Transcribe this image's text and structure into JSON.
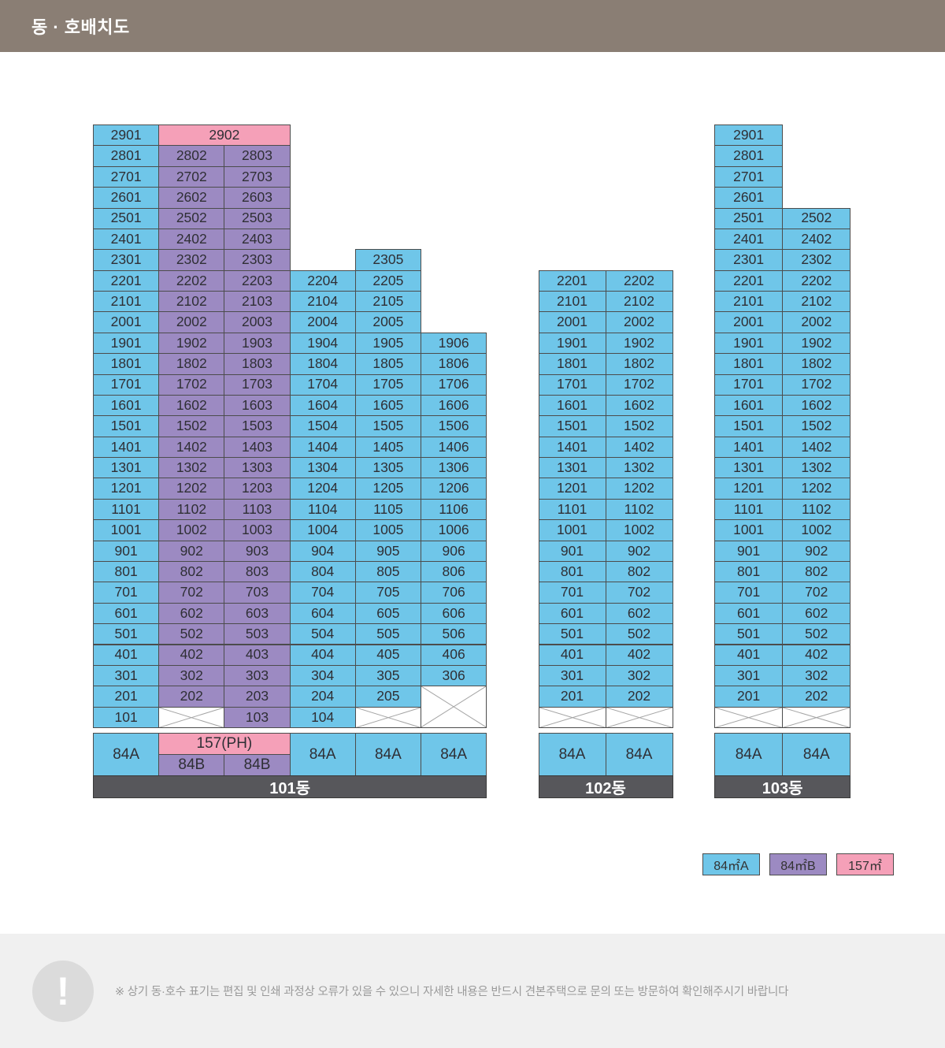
{
  "header": {
    "title": "동 · 호배치도"
  },
  "colors": {
    "unit_84a": "#6FC6E9",
    "unit_84b": "#9C8AC2",
    "unit_157": "#F5A0B8",
    "bar": "#57575B",
    "header_bg": "#8A7E74",
    "border": "#4C4C4C",
    "cell_text": "#2F2F35",
    "cross_line": "#A5A5A5",
    "note_bg": "#F0F0F0",
    "note_text": "#9A9A9A",
    "note_icon_bg": "#DBDBDB"
  },
  "legend": {
    "items": [
      {
        "label": "84㎡A",
        "color": "unit_84a"
      },
      {
        "label": "84㎡B",
        "color": "unit_84b"
      },
      {
        "label": "157㎡",
        "color": "unit_157"
      }
    ]
  },
  "note": {
    "icon_glyph": "!",
    "text": "※ 상기 동·호수 표기는 편집 및 인쇄 과정상 오류가 있을 수 있으니 자세한 내용은 반드시 견본주택으로 문의 또는 방문하여 확인해주시기 바랍니다"
  },
  "buildings": [
    {
      "name": "101동",
      "columns": [
        {
          "top_floor": 29,
          "color": "unit_84a",
          "cells": [
            "2901",
            "2801",
            "2701",
            "2601",
            "2501",
            "2401",
            "2301",
            "2201",
            "2101",
            "2001",
            "1901",
            "1801",
            "1701",
            "1601",
            "1501",
            "1401",
            "1301",
            "1201",
            "1101",
            "1001",
            "901",
            "801",
            "701",
            "601",
            "501",
            "401",
            "301",
            "201",
            "101"
          ]
        },
        {
          "top_floor": 29,
          "color": "unit_84b",
          "cells": [
            {
              "label": "2902",
              "color": "unit_157",
              "colspan": 2
            },
            "2802",
            "2702",
            "2602",
            "2502",
            "2402",
            "2302",
            "2202",
            "2102",
            "2002",
            "1902",
            "1802",
            "1702",
            "1602",
            "1502",
            "1402",
            "1302",
            "1202",
            "1102",
            "1002",
            "902",
            "802",
            "702",
            "602",
            "502",
            "402",
            "302",
            "202",
            {
              "cross": true
            }
          ]
        },
        {
          "top_floor": 28,
          "color": "unit_84b",
          "cells": [
            "2803",
            "2703",
            "2603",
            "2503",
            "2403",
            "2303",
            "2203",
            "2103",
            "2003",
            "1903",
            "1803",
            "1703",
            "1603",
            "1503",
            "1403",
            "1303",
            "1203",
            "1103",
            "1003",
            "903",
            "803",
            "703",
            "603",
            "503",
            "403",
            "303",
            "203",
            "103"
          ]
        },
        {
          "top_floor": 22,
          "color": "unit_84a",
          "cells": [
            "2204",
            "2104",
            "2004",
            "1904",
            "1804",
            "1704",
            "1604",
            "1504",
            "1404",
            "1304",
            "1204",
            "1104",
            "1004",
            "904",
            "804",
            "704",
            "604",
            "504",
            "404",
            "304",
            "204",
            "104"
          ]
        },
        {
          "top_floor": 23,
          "color": "unit_84a",
          "cells": [
            "2305",
            "2205",
            "2105",
            "2005",
            "1905",
            "1805",
            "1705",
            "1605",
            "1505",
            "1405",
            "1305",
            "1205",
            "1105",
            "1005",
            "905",
            "805",
            "705",
            "605",
            "505",
            "405",
            "305",
            "205",
            {
              "cross": true
            }
          ]
        },
        {
          "top_floor": 19,
          "color": "unit_84a",
          "cells": [
            "1906",
            "1806",
            "1706",
            "1606",
            "1506",
            "1406",
            "1306",
            "1206",
            "1106",
            "1006",
            "906",
            "806",
            "706",
            "606",
            "506",
            "406",
            "306",
            {
              "cross": true,
              "rowspan": 2
            }
          ]
        }
      ],
      "footer_units": [
        {
          "col": 0,
          "label": "84A",
          "color": "unit_84a",
          "rowspan": 2
        },
        {
          "col": 1,
          "row": 0,
          "label": "157(PH)",
          "color": "unit_157",
          "colspan": 2
        },
        {
          "col": 1,
          "row": 1,
          "label": "84B",
          "color": "unit_84b"
        },
        {
          "col": 2,
          "row": 1,
          "label": "84B",
          "color": "unit_84b"
        },
        {
          "col": 3,
          "label": "84A",
          "color": "unit_84a",
          "rowspan": 2
        },
        {
          "col": 4,
          "label": "84A",
          "color": "unit_84a",
          "rowspan": 2
        },
        {
          "col": 5,
          "label": "84A",
          "color": "unit_84a",
          "rowspan": 2
        }
      ]
    },
    {
      "name": "102동",
      "columns": [
        {
          "top_floor": 22,
          "color": "unit_84a",
          "cells": [
            "2201",
            "2101",
            "2001",
            "1901",
            "1801",
            "1701",
            "1601",
            "1501",
            "1401",
            "1301",
            "1201",
            "1101",
            "1001",
            "901",
            "801",
            "701",
            "601",
            "501",
            "401",
            "301",
            "201",
            {
              "cross": true
            }
          ]
        },
        {
          "top_floor": 22,
          "color": "unit_84a",
          "cells": [
            "2202",
            "2102",
            "2002",
            "1902",
            "1802",
            "1702",
            "1602",
            "1502",
            "1402",
            "1302",
            "1202",
            "1102",
            "1002",
            "902",
            "802",
            "702",
            "602",
            "502",
            "402",
            "302",
            "202",
            {
              "cross": true
            }
          ]
        }
      ],
      "footer_units": [
        {
          "col": 0,
          "label": "84A",
          "color": "unit_84a",
          "rowspan": 2
        },
        {
          "col": 1,
          "label": "84A",
          "color": "unit_84a",
          "rowspan": 2
        }
      ]
    },
    {
      "name": "103동",
      "columns": [
        {
          "top_floor": 29,
          "color": "unit_84a",
          "cells": [
            "2901",
            "2801",
            "2701",
            "2601",
            "2501",
            "2401",
            "2301",
            "2201",
            "2101",
            "2001",
            "1901",
            "1801",
            "1701",
            "1601",
            "1501",
            "1401",
            "1301",
            "1201",
            "1101",
            "1001",
            "901",
            "801",
            "701",
            "601",
            "501",
            "401",
            "301",
            "201",
            {
              "cross": true
            }
          ]
        },
        {
          "top_floor": 25,
          "color": "unit_84a",
          "cells": [
            "2502",
            "2402",
            "2302",
            "2202",
            "2102",
            "2002",
            "1902",
            "1802",
            "1702",
            "1602",
            "1502",
            "1402",
            "1302",
            "1202",
            "1102",
            "1002",
            "902",
            "802",
            "702",
            "602",
            "502",
            "402",
            "302",
            "202",
            {
              "cross": true
            }
          ]
        }
      ],
      "footer_units": [
        {
          "col": 0,
          "label": "84A",
          "color": "unit_84a",
          "rowspan": 2
        },
        {
          "col": 1,
          "label": "84A",
          "color": "unit_84a",
          "rowspan": 2
        }
      ]
    }
  ]
}
